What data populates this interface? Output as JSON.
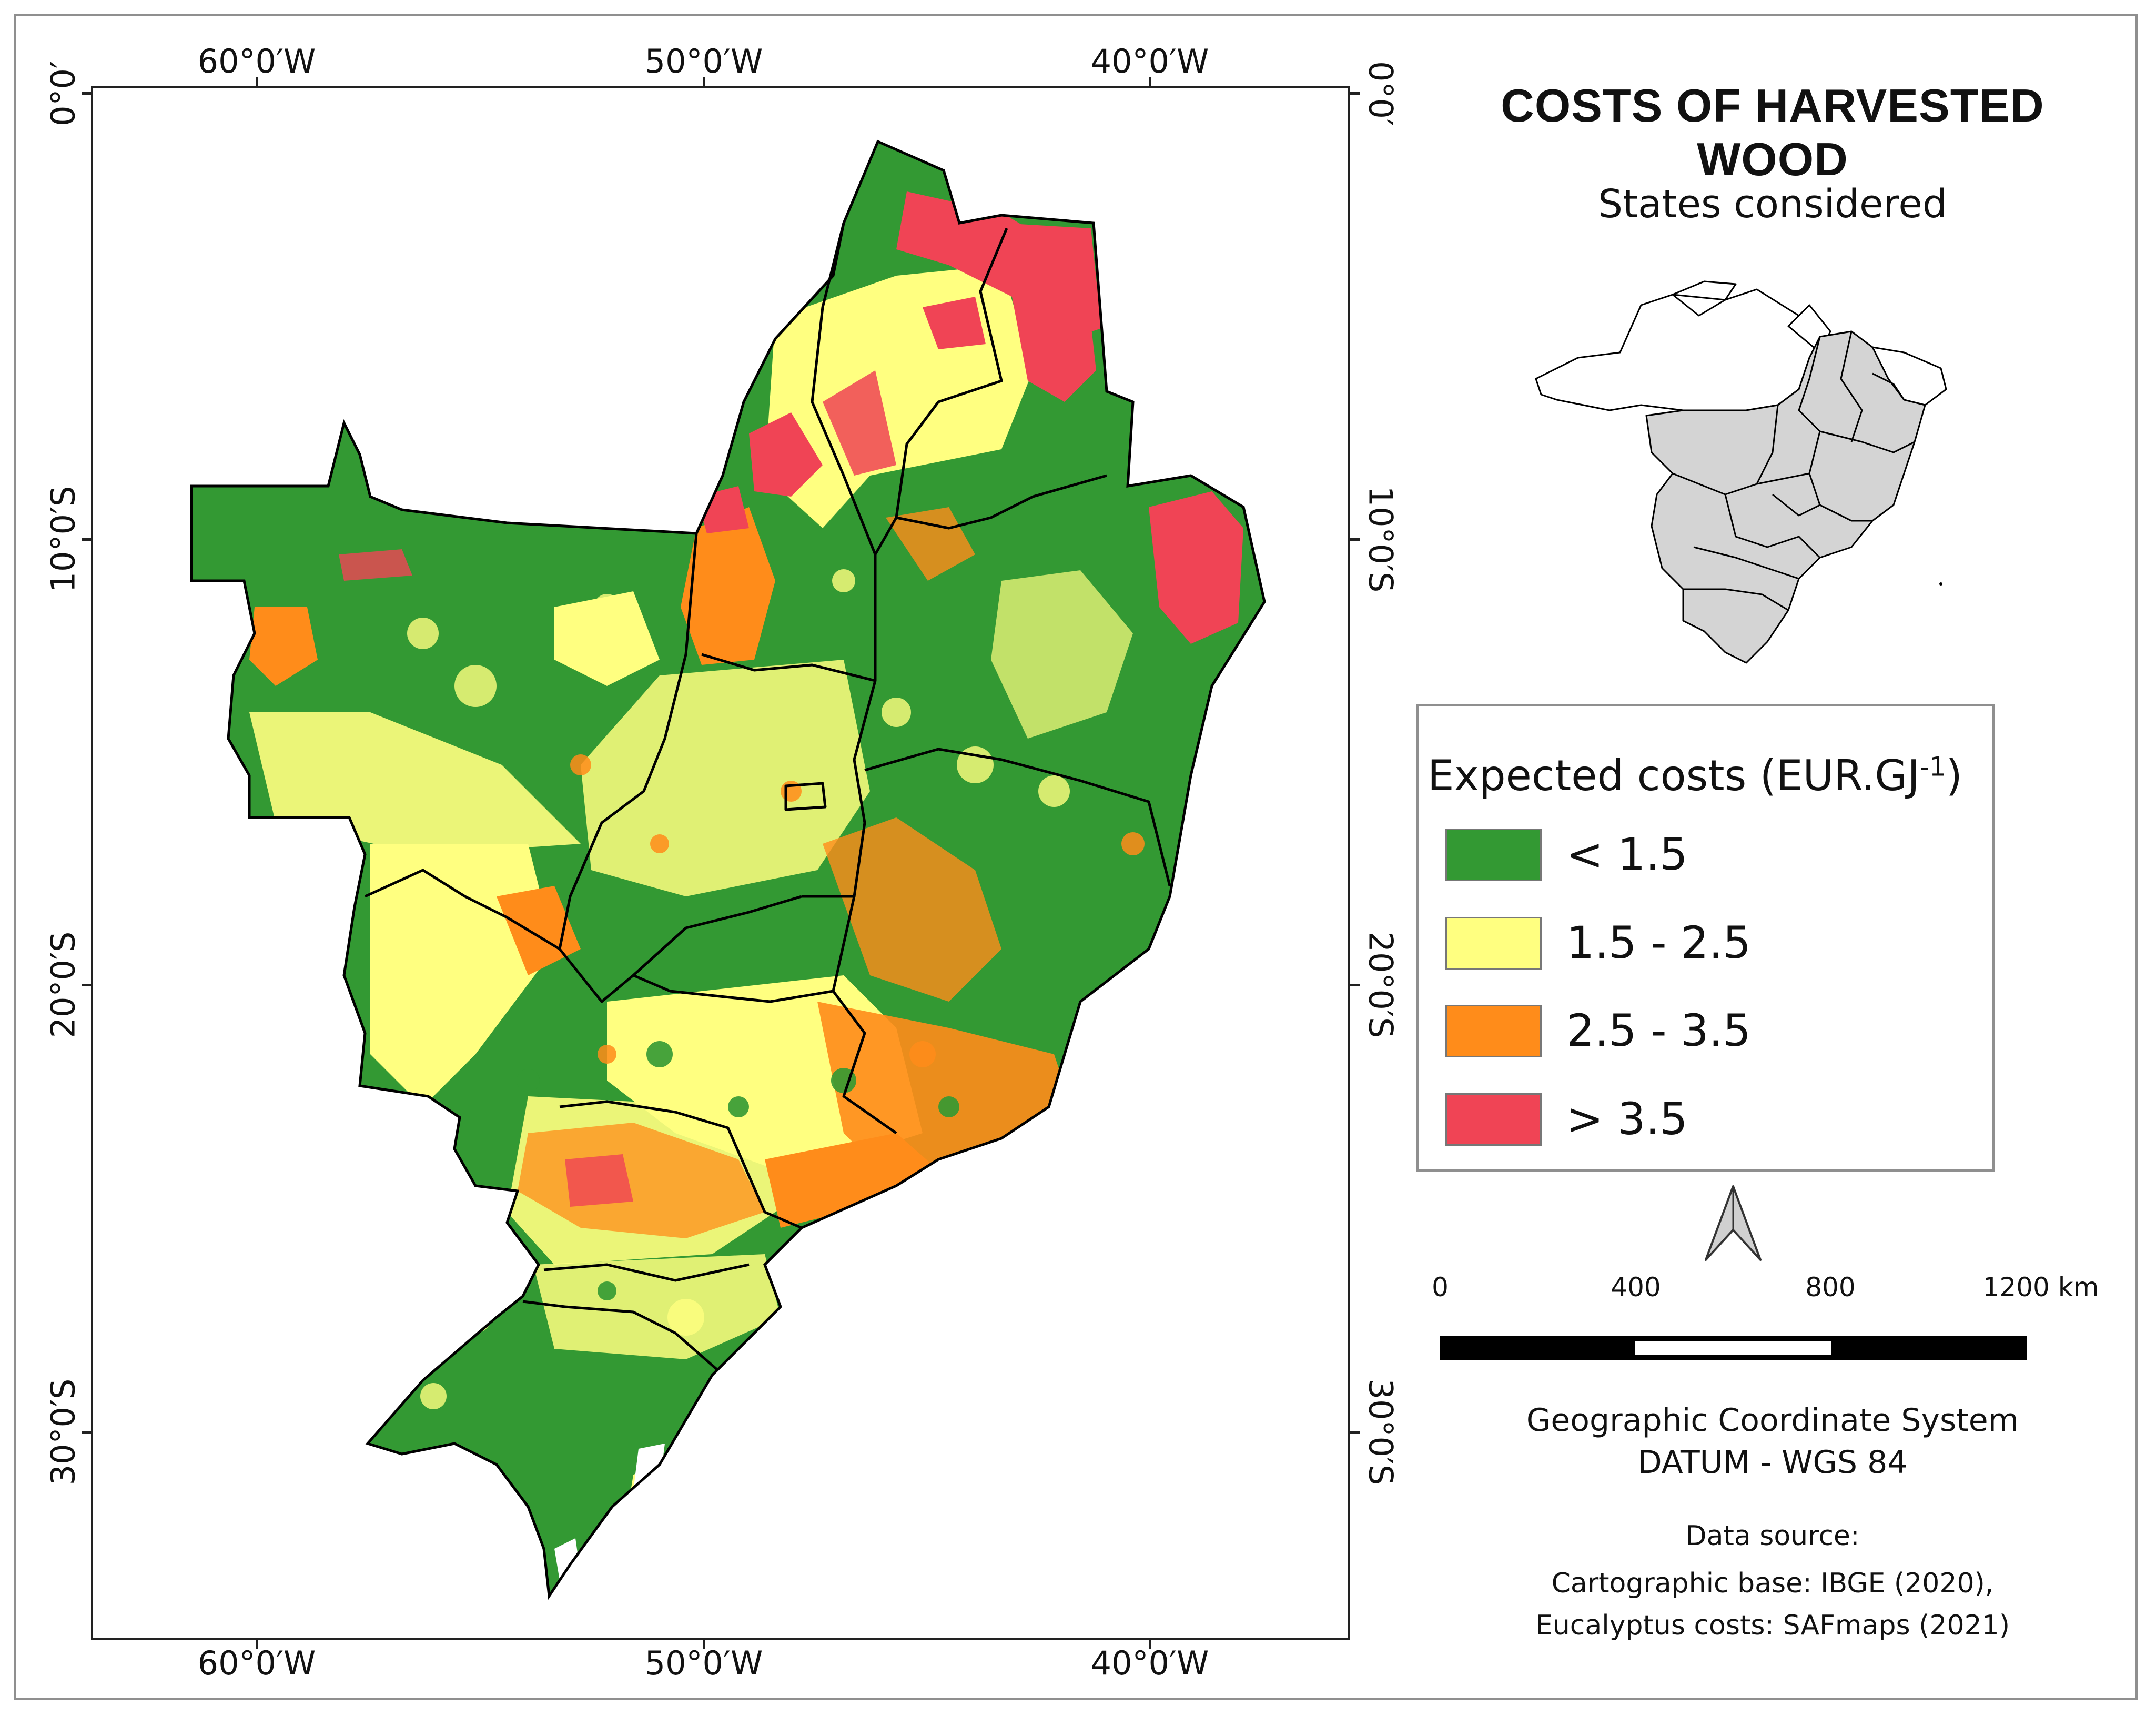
{
  "title": "COSTS OF HARVESTED WOOD",
  "inset": {
    "title": "States considered",
    "selected_fill": "#d4d4d4",
    "other_fill": "#ffffff"
  },
  "axes": {
    "longitude_labels": [
      "60°0′W",
      "50°0′W",
      "40°0′W"
    ],
    "latitude_labels": [
      "0°0′",
      "10°0′S",
      "20°0′S",
      "30°0′S"
    ]
  },
  "legend": {
    "title": "Expected costs (EUR.GJ",
    "title_sup": "-1",
    "title_end": ")",
    "classes": [
      {
        "label": "<  1.5",
        "color": "#339933"
      },
      {
        "label": "1.5 - 2.5",
        "color": "#ffff80"
      },
      {
        "label": "2.5 - 3.5",
        "color": "#ff8c1a"
      },
      {
        "label": "> 3.5",
        "color": "#f04455"
      }
    ]
  },
  "north_arrow": "north-arrow-icon",
  "scale_bar": {
    "labels": [
      "0",
      "400",
      "800",
      "1200 km"
    ]
  },
  "crs": {
    "line1": "Geographic Coordinate System",
    "line2": "DATUM - WGS 84"
  },
  "source": {
    "heading": "Data source:",
    "line1": "Cartographic base: IBGE (2020),",
    "line2": "Eucalyptus costs: SAFmaps (2021)"
  }
}
